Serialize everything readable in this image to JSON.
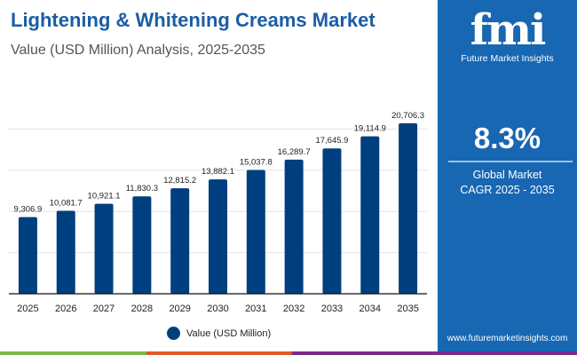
{
  "header": {
    "title": "Lightening & Whitening Creams Market",
    "subtitle": "Value (USD Million) Analysis, 2025-2035"
  },
  "panel": {
    "logo_text": "fmi",
    "logo_subtext": "Future Market Insights",
    "cagr_value": "8.3%",
    "cagr_line1": "Global Market",
    "cagr_line2": "CAGR 2025 - 2035",
    "website": "www.futuremarketinsights.com",
    "bg_color": "#1767b3"
  },
  "strip_colors": [
    "#7ab648",
    "#e05a26",
    "#7b2a8a"
  ],
  "chart_data": {
    "type": "bar",
    "title": "Lightening & Whitening Creams Market",
    "subtitle": "Value (USD Million) Analysis, 2025-2035",
    "categories": [
      "2025",
      "2026",
      "2027",
      "2028",
      "2029",
      "2030",
      "2031",
      "2032",
      "2033",
      "2034",
      "2035"
    ],
    "series": [
      {
        "name": "Value (USD Million)",
        "color": "#003f7f",
        "values": [
          9306.9,
          10081.7,
          10921.1,
          11830.3,
          12815.2,
          13882.1,
          15037.8,
          16289.7,
          17645.9,
          19114.9,
          20706.3
        ]
      }
    ],
    "data_labels": [
      "9,306.9",
      "10,081.7",
      "10,921.1",
      "11,830.3",
      "12,815.2",
      "13,882.1",
      "15,037.8",
      "16,289.7",
      "17,645.9",
      "19,114.9",
      "20,706.3"
    ],
    "ylim": [
      0,
      25000
    ],
    "gridlines": [
      5000,
      10000,
      15000,
      20000
    ],
    "grid": true,
    "y_tick_labels_shown": false,
    "legend": "bottom-center"
  }
}
